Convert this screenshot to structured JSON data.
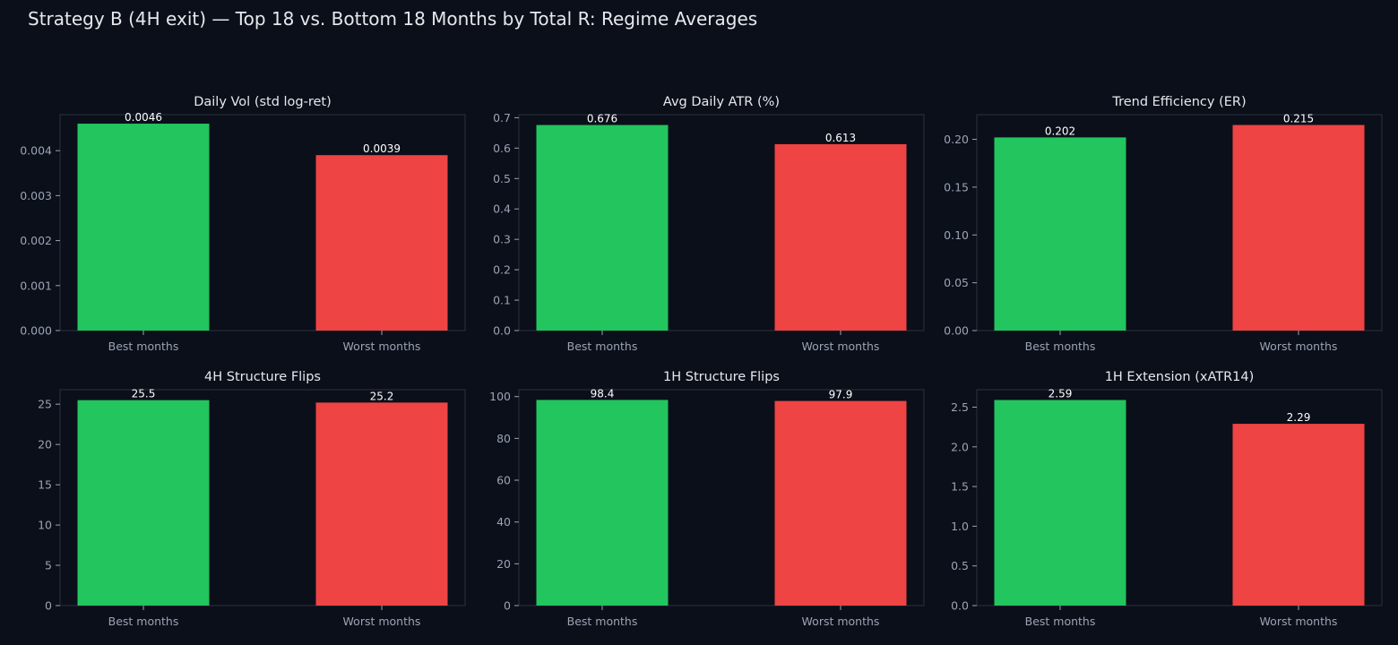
{
  "figure": {
    "title": "Strategy B (4H exit) — Top 18 vs. Bottom 18 Months by Total R: Regime Averages",
    "background": "#0b0f19",
    "axes_face": "#0b0f19",
    "spine_color": "#2a3040",
    "text_color": "#e6e8ee",
    "tick_color": "#9aa3b5"
  },
  "chart_data": [
    {
      "type": "bar",
      "title": "Daily Vol (std log-ret)",
      "categories": [
        "Best months",
        "Worst months"
      ],
      "values": [
        0.0046,
        0.0039
      ],
      "value_labels": [
        "0.0046",
        "0.0039"
      ],
      "colors": [
        "#22c55e",
        "#ef4444"
      ],
      "ylim": [
        0,
        0.0048
      ],
      "yticks": [
        0,
        0.001,
        0.002,
        0.003,
        0.004
      ],
      "ytick_labels": [
        "0.000",
        "0.001",
        "0.002",
        "0.003",
        "0.004"
      ],
      "grid": false
    },
    {
      "type": "bar",
      "title": "Avg Daily ATR (%)",
      "categories": [
        "Best months",
        "Worst months"
      ],
      "values": [
        0.676,
        0.613
      ],
      "value_labels": [
        "0.676",
        "0.613"
      ],
      "colors": [
        "#22c55e",
        "#ef4444"
      ],
      "ylim": [
        0,
        0.71
      ],
      "yticks": [
        0,
        0.1,
        0.2,
        0.3,
        0.4,
        0.5,
        0.6,
        0.7
      ],
      "ytick_labels": [
        "0.0",
        "0.1",
        "0.2",
        "0.3",
        "0.4",
        "0.5",
        "0.6",
        "0.7"
      ],
      "grid": false
    },
    {
      "type": "bar",
      "title": "Trend Efficiency (ER)",
      "categories": [
        "Best months",
        "Worst months"
      ],
      "values": [
        0.202,
        0.215
      ],
      "value_labels": [
        "0.202",
        "0.215"
      ],
      "colors": [
        "#22c55e",
        "#ef4444"
      ],
      "ylim": [
        0,
        0.2258
      ],
      "yticks": [
        0,
        0.05,
        0.1,
        0.15,
        0.2
      ],
      "ytick_labels": [
        "0.00",
        "0.05",
        "0.10",
        "0.15",
        "0.20"
      ],
      "grid": false
    },
    {
      "type": "bar",
      "title": "4H Structure Flips",
      "categories": [
        "Best months",
        "Worst months"
      ],
      "values": [
        25.5,
        25.2
      ],
      "value_labels": [
        "25.5",
        "25.2"
      ],
      "colors": [
        "#22c55e",
        "#ef4444"
      ],
      "ylim": [
        0,
        26.8
      ],
      "yticks": [
        0,
        5,
        10,
        15,
        20,
        25
      ],
      "ytick_labels": [
        "0",
        "5",
        "10",
        "15",
        "20",
        "25"
      ],
      "grid": false
    },
    {
      "type": "bar",
      "title": "1H Structure Flips",
      "categories": [
        "Best months",
        "Worst months"
      ],
      "values": [
        98.4,
        97.9
      ],
      "value_labels": [
        "98.4",
        "97.9"
      ],
      "colors": [
        "#22c55e",
        "#ef4444"
      ],
      "ylim": [
        0,
        103.3
      ],
      "yticks": [
        0,
        20,
        40,
        60,
        80,
        100
      ],
      "ytick_labels": [
        "0",
        "20",
        "40",
        "60",
        "80",
        "100"
      ],
      "grid": false
    },
    {
      "type": "bar",
      "title": "1H Extension (xATR14)",
      "categories": [
        "Best months",
        "Worst months"
      ],
      "values": [
        2.59,
        2.29
      ],
      "value_labels": [
        "2.59",
        "2.29"
      ],
      "colors": [
        "#22c55e",
        "#ef4444"
      ],
      "ylim": [
        0,
        2.72
      ],
      "yticks": [
        0,
        0.5,
        1.0,
        1.5,
        2.0,
        2.5
      ],
      "ytick_labels": [
        "0.0",
        "0.5",
        "1.0",
        "1.5",
        "2.0",
        "2.5"
      ],
      "grid": false
    }
  ]
}
